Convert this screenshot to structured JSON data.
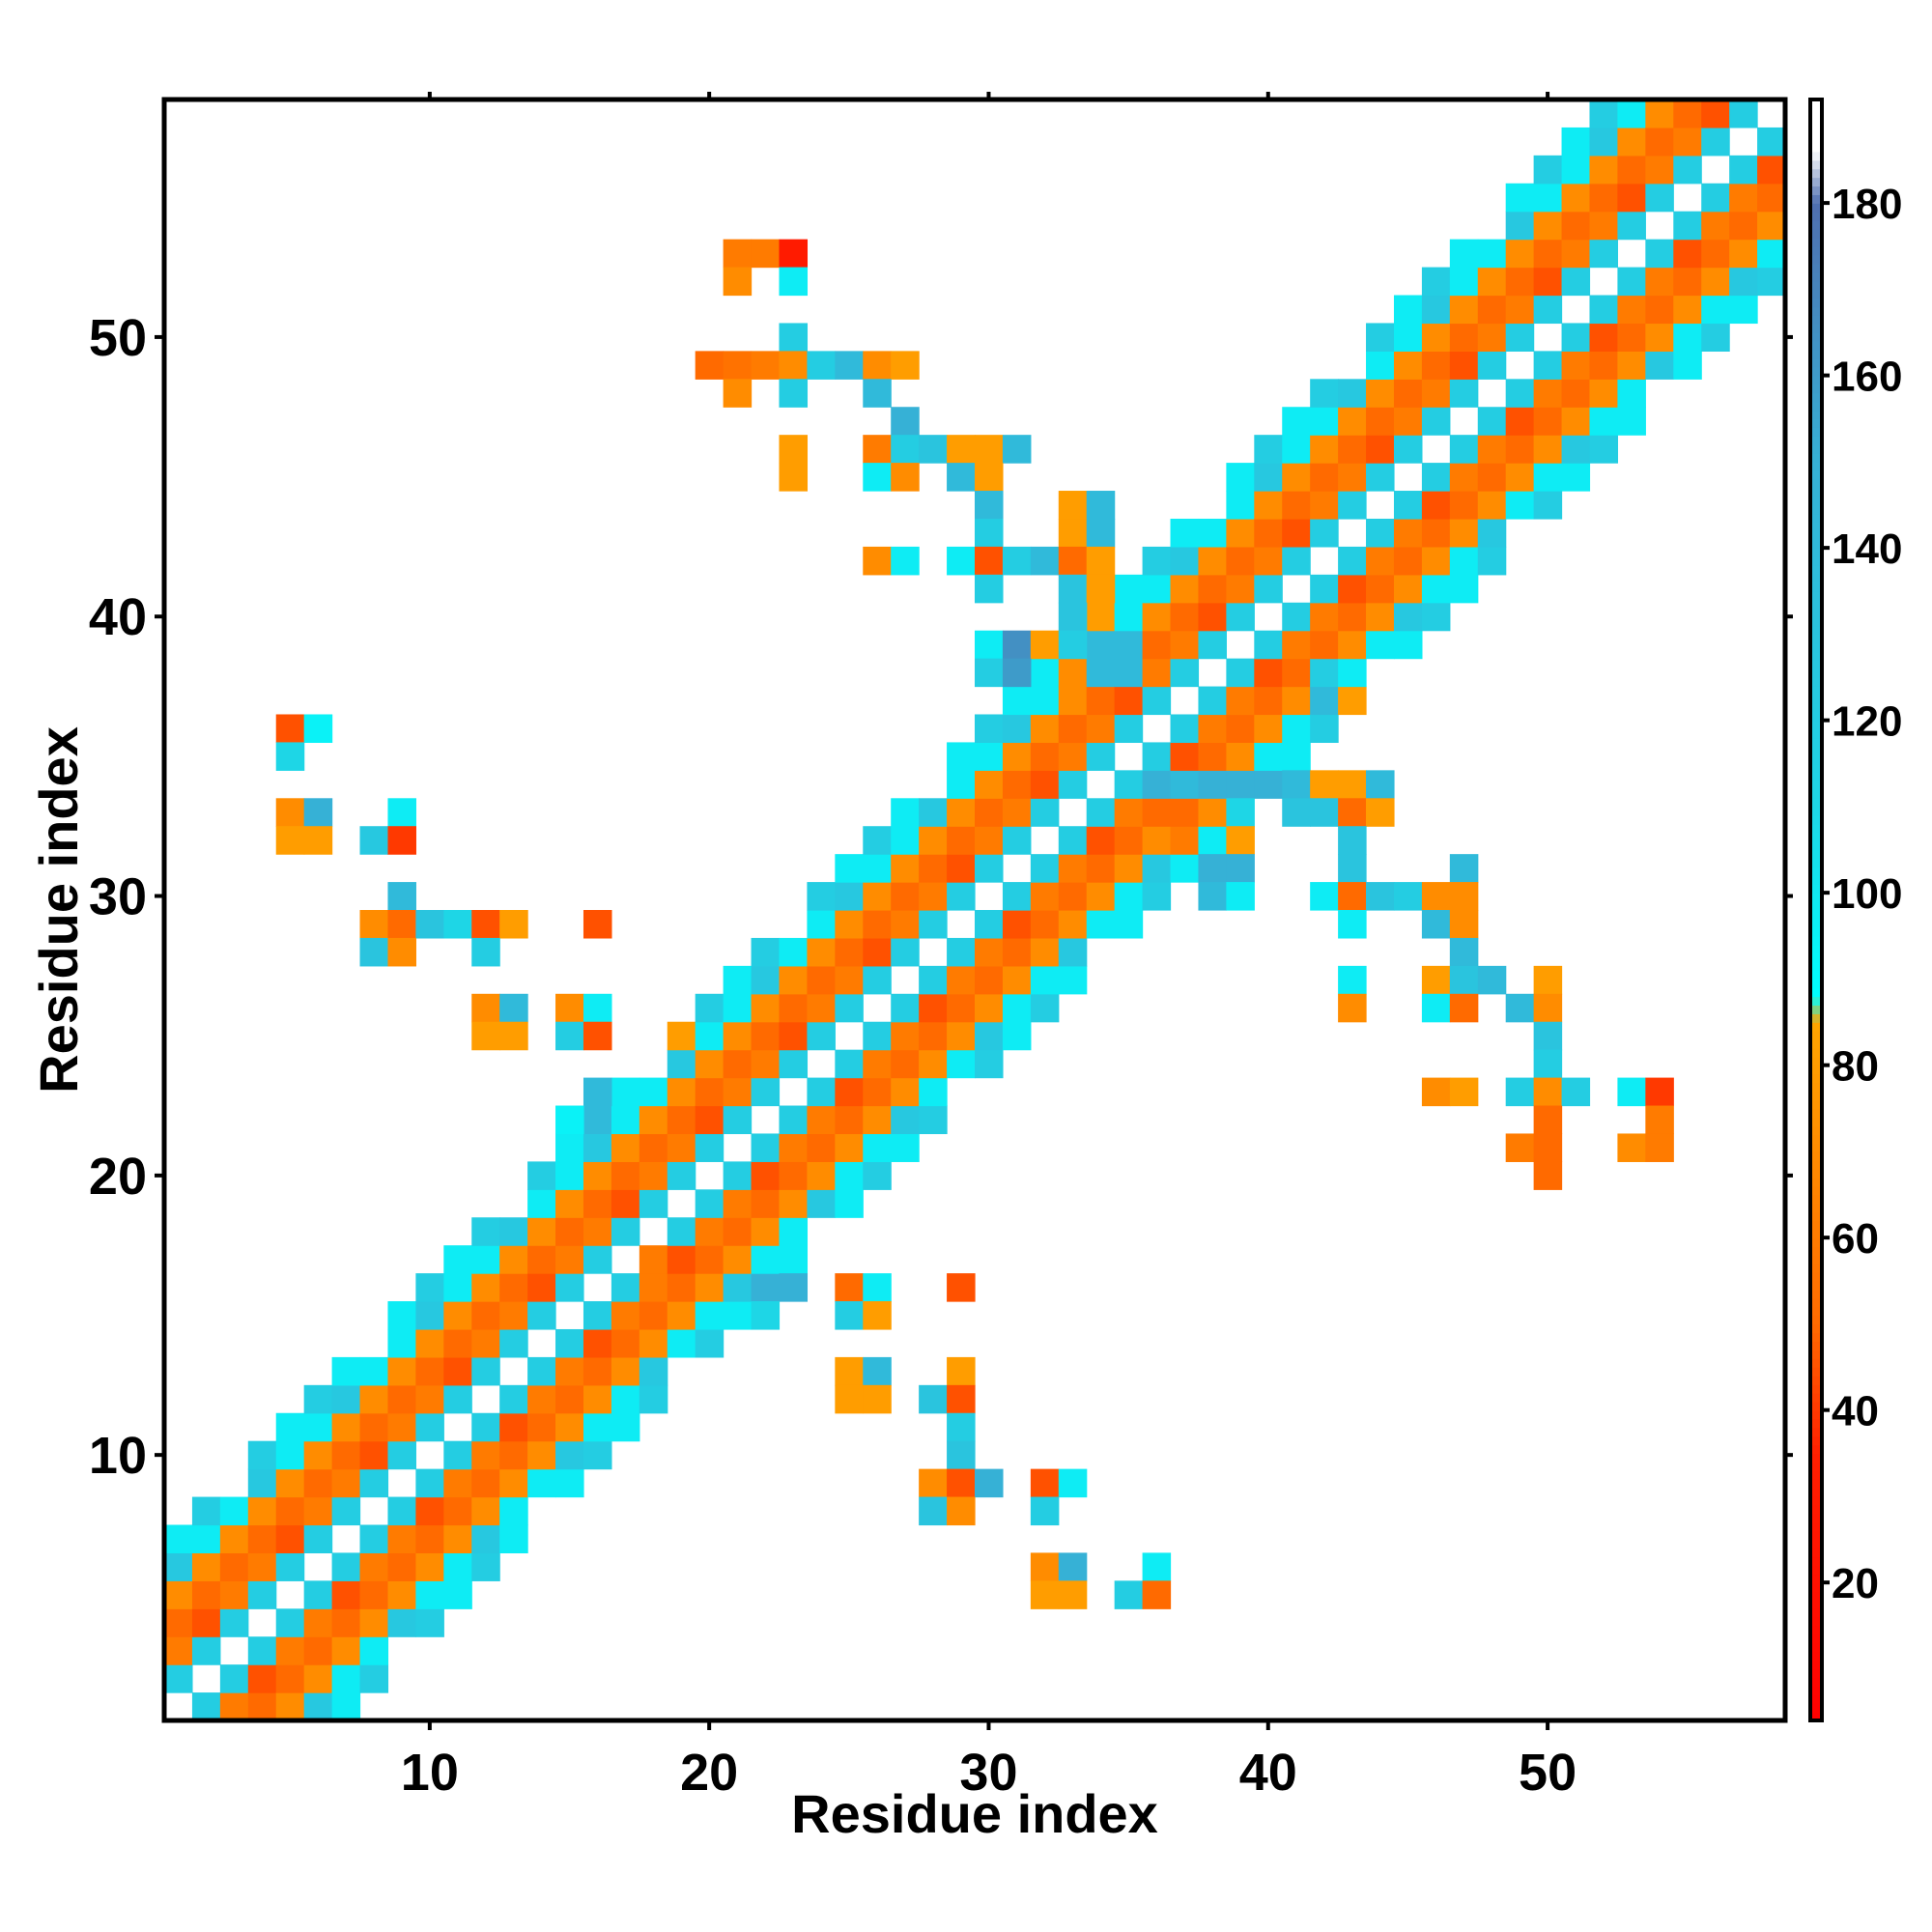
{
  "chart_data": {
    "type": "heatmap",
    "title": "",
    "xlabel": "Residue index",
    "ylabel": "Residue index",
    "xlim": [
      0.5,
      58.5
    ],
    "ylim": [
      0.5,
      58.5
    ],
    "xticks": [
      10,
      20,
      30,
      40,
      50
    ],
    "yticks": [
      10,
      20,
      30,
      40,
      50
    ],
    "colorbar": {
      "range": [
        4,
        192
      ],
      "ticks": [
        20,
        40,
        60,
        80,
        100,
        120,
        140,
        160,
        180
      ],
      "stops": [
        {
          "value": 4,
          "color": "#ff0000"
        },
        {
          "value": 35,
          "color": "#ff2000"
        },
        {
          "value": 50,
          "color": "#ff6a00"
        },
        {
          "value": 85,
          "color": "#ffa500"
        },
        {
          "value": 88,
          "color": "#00ffff"
        },
        {
          "value": 110,
          "color": "#1ed6e6"
        },
        {
          "value": 150,
          "color": "#36b1d6"
        },
        {
          "value": 180,
          "color": "#4f6fb0"
        },
        {
          "value": 186,
          "color": "#ffffff"
        },
        {
          "value": 192,
          "color": "#ffffff"
        }
      ]
    },
    "diagonal_band": [
      [
        0,
        130,
        8,
        95,
        120,
        130,
        45,
        25,
        120,
        160
      ],
      [
        25,
        130,
        8,
        95
      ],
      [
        50,
        120,
        15,
        75
      ]
    ],
    "cells": [
      [
        5,
        36,
        45
      ],
      [
        6,
        36,
        95
      ],
      [
        5,
        35,
        110
      ],
      [
        5,
        33,
        70
      ],
      [
        6,
        33,
        150
      ],
      [
        5,
        32,
        80
      ],
      [
        6,
        32,
        80
      ],
      [
        9,
        33,
        98
      ],
      [
        8,
        32,
        125
      ],
      [
        9,
        32,
        40
      ],
      [
        9,
        30,
        140
      ],
      [
        8,
        29,
        70
      ],
      [
        9,
        29,
        50
      ],
      [
        10,
        29,
        130
      ],
      [
        11,
        29,
        110
      ],
      [
        12,
        29,
        45
      ],
      [
        13,
        29,
        80
      ],
      [
        16,
        29,
        45
      ],
      [
        8,
        28,
        130
      ],
      [
        9,
        28,
        70
      ],
      [
        12,
        28,
        120
      ],
      [
        12,
        26,
        70
      ],
      [
        13,
        26,
        140
      ],
      [
        15,
        26,
        70
      ],
      [
        16,
        26,
        98
      ],
      [
        12,
        25,
        80
      ],
      [
        13,
        25,
        80
      ],
      [
        15,
        25,
        120
      ],
      [
        16,
        25,
        45
      ],
      [
        19,
        25,
        80
      ],
      [
        16,
        23,
        140
      ],
      [
        15,
        22,
        95
      ],
      [
        16,
        22,
        140
      ],
      [
        18,
        17,
        60
      ],
      [
        22,
        16,
        150
      ],
      [
        23,
        16,
        150
      ],
      [
        25,
        16,
        50
      ],
      [
        26,
        16,
        98
      ],
      [
        29,
        16,
        45
      ],
      [
        22,
        15,
        110
      ],
      [
        25,
        15,
        120
      ],
      [
        26,
        15,
        80
      ],
      [
        25,
        13,
        80
      ],
      [
        26,
        13,
        140
      ],
      [
        29,
        13,
        80
      ],
      [
        25,
        12,
        80
      ],
      [
        26,
        12,
        80
      ],
      [
        28,
        12,
        130
      ],
      [
        29,
        12,
        45
      ],
      [
        29,
        11,
        120
      ],
      [
        29,
        10,
        130
      ],
      [
        28,
        9,
        70
      ],
      [
        29,
        9,
        45
      ],
      [
        30,
        9,
        150
      ],
      [
        32,
        9,
        45
      ],
      [
        33,
        9,
        98
      ],
      [
        28,
        8,
        130
      ],
      [
        29,
        8,
        70
      ],
      [
        32,
        8,
        120
      ],
      [
        32,
        6,
        70
      ],
      [
        33,
        6,
        150
      ],
      [
        36,
        6,
        98
      ],
      [
        32,
        5,
        80
      ],
      [
        33,
        5,
        80
      ],
      [
        35,
        5,
        120
      ],
      [
        36,
        5,
        50
      ],
      [
        21,
        53,
        60
      ],
      [
        22,
        53,
        60
      ],
      [
        23,
        53,
        30
      ],
      [
        21,
        52,
        70
      ],
      [
        23,
        52,
        98
      ],
      [
        23,
        50,
        120
      ],
      [
        20,
        49,
        50
      ],
      [
        21,
        49,
        55
      ],
      [
        22,
        49,
        60
      ],
      [
        23,
        49,
        70
      ],
      [
        24,
        49,
        120
      ],
      [
        25,
        49,
        140
      ],
      [
        26,
        49,
        70
      ],
      [
        27,
        49,
        80
      ],
      [
        21,
        48,
        70
      ],
      [
        23,
        48,
        120
      ],
      [
        26,
        48,
        140
      ],
      [
        27,
        47,
        150
      ],
      [
        23,
        46,
        80
      ],
      [
        26,
        46,
        60
      ],
      [
        27,
        46,
        120
      ],
      [
        28,
        46,
        130
      ],
      [
        29,
        46,
        80
      ],
      [
        30,
        46,
        80
      ],
      [
        31,
        46,
        140
      ],
      [
        23,
        45,
        80
      ],
      [
        26,
        45,
        98
      ],
      [
        27,
        45,
        70
      ],
      [
        29,
        45,
        140
      ],
      [
        30,
        45,
        80
      ],
      [
        30,
        44,
        140
      ],
      [
        30,
        43,
        120
      ],
      [
        26,
        42,
        70
      ],
      [
        27,
        42,
        98
      ],
      [
        29,
        42,
        98
      ],
      [
        30,
        42,
        45
      ],
      [
        31,
        42,
        120
      ],
      [
        32,
        42,
        140
      ],
      [
        30,
        41,
        120
      ],
      [
        33,
        43,
        80
      ],
      [
        34,
        43,
        140
      ],
      [
        33,
        42,
        50
      ],
      [
        34,
        42,
        80
      ],
      [
        33,
        41,
        130
      ],
      [
        34,
        41,
        80
      ],
      [
        33,
        40,
        130
      ],
      [
        34,
        40,
        80
      ],
      [
        30,
        39,
        98
      ],
      [
        31,
        39,
        165
      ],
      [
        32,
        39,
        80
      ],
      [
        33,
        39,
        120
      ],
      [
        34,
        39,
        140
      ],
      [
        35,
        39,
        140
      ],
      [
        30,
        38,
        120
      ],
      [
        31,
        38,
        160
      ],
      [
        32,
        38,
        98
      ],
      [
        33,
        38,
        70
      ],
      [
        34,
        38,
        140
      ],
      [
        35,
        38,
        140
      ],
      [
        36,
        34,
        150
      ],
      [
        37,
        34,
        140
      ],
      [
        38,
        34,
        150
      ],
      [
        39,
        34,
        150
      ],
      [
        40,
        34,
        150
      ],
      [
        41,
        34,
        140
      ],
      [
        42,
        34,
        80
      ],
      [
        43,
        34,
        80
      ],
      [
        44,
        34,
        140
      ],
      [
        37,
        33,
        50
      ],
      [
        38,
        33,
        70
      ],
      [
        39,
        33,
        110
      ],
      [
        41,
        33,
        130
      ],
      [
        42,
        33,
        130
      ],
      [
        43,
        33,
        50
      ],
      [
        44,
        33,
        80
      ],
      [
        37,
        32,
        60
      ],
      [
        38,
        32,
        98
      ],
      [
        39,
        32,
        80
      ],
      [
        43,
        32,
        130
      ],
      [
        38,
        31,
        150
      ],
      [
        39,
        31,
        150
      ],
      [
        43,
        31,
        130
      ],
      [
        47,
        31,
        140
      ],
      [
        38,
        30,
        140
      ],
      [
        39,
        30,
        98
      ],
      [
        42,
        30,
        98
      ],
      [
        43,
        30,
        50
      ],
      [
        44,
        30,
        130
      ],
      [
        45,
        30,
        120
      ],
      [
        46,
        30,
        70
      ],
      [
        47,
        30,
        70
      ],
      [
        43,
        29,
        98
      ],
      [
        46,
        29,
        140
      ],
      [
        47,
        29,
        70
      ],
      [
        47,
        28,
        140
      ],
      [
        43,
        27,
        98
      ],
      [
        46,
        27,
        80
      ],
      [
        47,
        27,
        130
      ],
      [
        48,
        27,
        140
      ],
      [
        50,
        27,
        80
      ],
      [
        43,
        26,
        70
      ],
      [
        46,
        26,
        98
      ],
      [
        47,
        26,
        50
      ],
      [
        49,
        26,
        140
      ],
      [
        50,
        26,
        70
      ],
      [
        50,
        25,
        130
      ],
      [
        50,
        24,
        120
      ],
      [
        46,
        23,
        70
      ],
      [
        47,
        23,
        80
      ],
      [
        49,
        23,
        120
      ],
      [
        50,
        23,
        70
      ],
      [
        51,
        23,
        120
      ],
      [
        53,
        23,
        98
      ],
      [
        54,
        23,
        40
      ],
      [
        50,
        22,
        50
      ],
      [
        54,
        22,
        60
      ],
      [
        49,
        21,
        60
      ],
      [
        50,
        21,
        50
      ],
      [
        53,
        21,
        70
      ],
      [
        54,
        21,
        60
      ],
      [
        50,
        20,
        50
      ],
      [
        33,
        44,
        80
      ],
      [
        34,
        44,
        140
      ],
      [
        42,
        38,
        120
      ],
      [
        42,
        37,
        140
      ],
      [
        43,
        37,
        80
      ]
    ]
  }
}
